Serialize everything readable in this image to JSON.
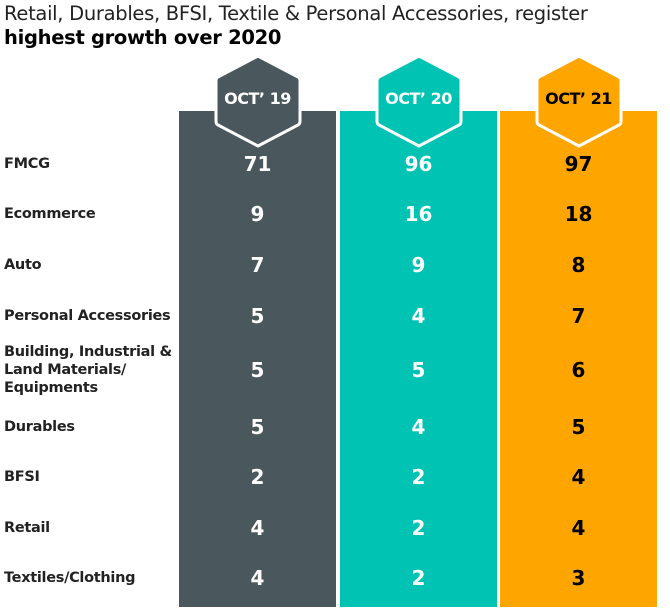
{
  "title": {
    "line1": "Retail, Durables, BFSI, Textile & Personal Accessories, register",
    "line2": "highest growth over 2020"
  },
  "chart_data": {
    "type": "table",
    "title": "Retail, Durables, BFSI, Textile & Personal Accessories, register highest growth over 2020",
    "categories": [
      "FMCG",
      "Ecommerce",
      "Auto",
      "Personal Accessories",
      "Building, Industrial & Land Materials/ Equipments",
      "Durables",
      "BFSI",
      "Retail",
      "Textiles/Clothing"
    ],
    "series": [
      {
        "name": "OCT’ 19",
        "color": "#4a585d",
        "text_color": "#ffffff",
        "values": [
          71,
          9,
          7,
          5,
          5,
          5,
          2,
          4,
          4
        ]
      },
      {
        "name": "OCT’ 20",
        "color": "#00c3b4",
        "text_color": "#ffffff",
        "values": [
          96,
          16,
          9,
          4,
          5,
          4,
          2,
          2,
          2
        ]
      },
      {
        "name": "OCT’ 21",
        "color": "#ffa500",
        "text_color": "#000000",
        "values": [
          97,
          18,
          8,
          7,
          6,
          5,
          4,
          4,
          3
        ]
      }
    ]
  }
}
